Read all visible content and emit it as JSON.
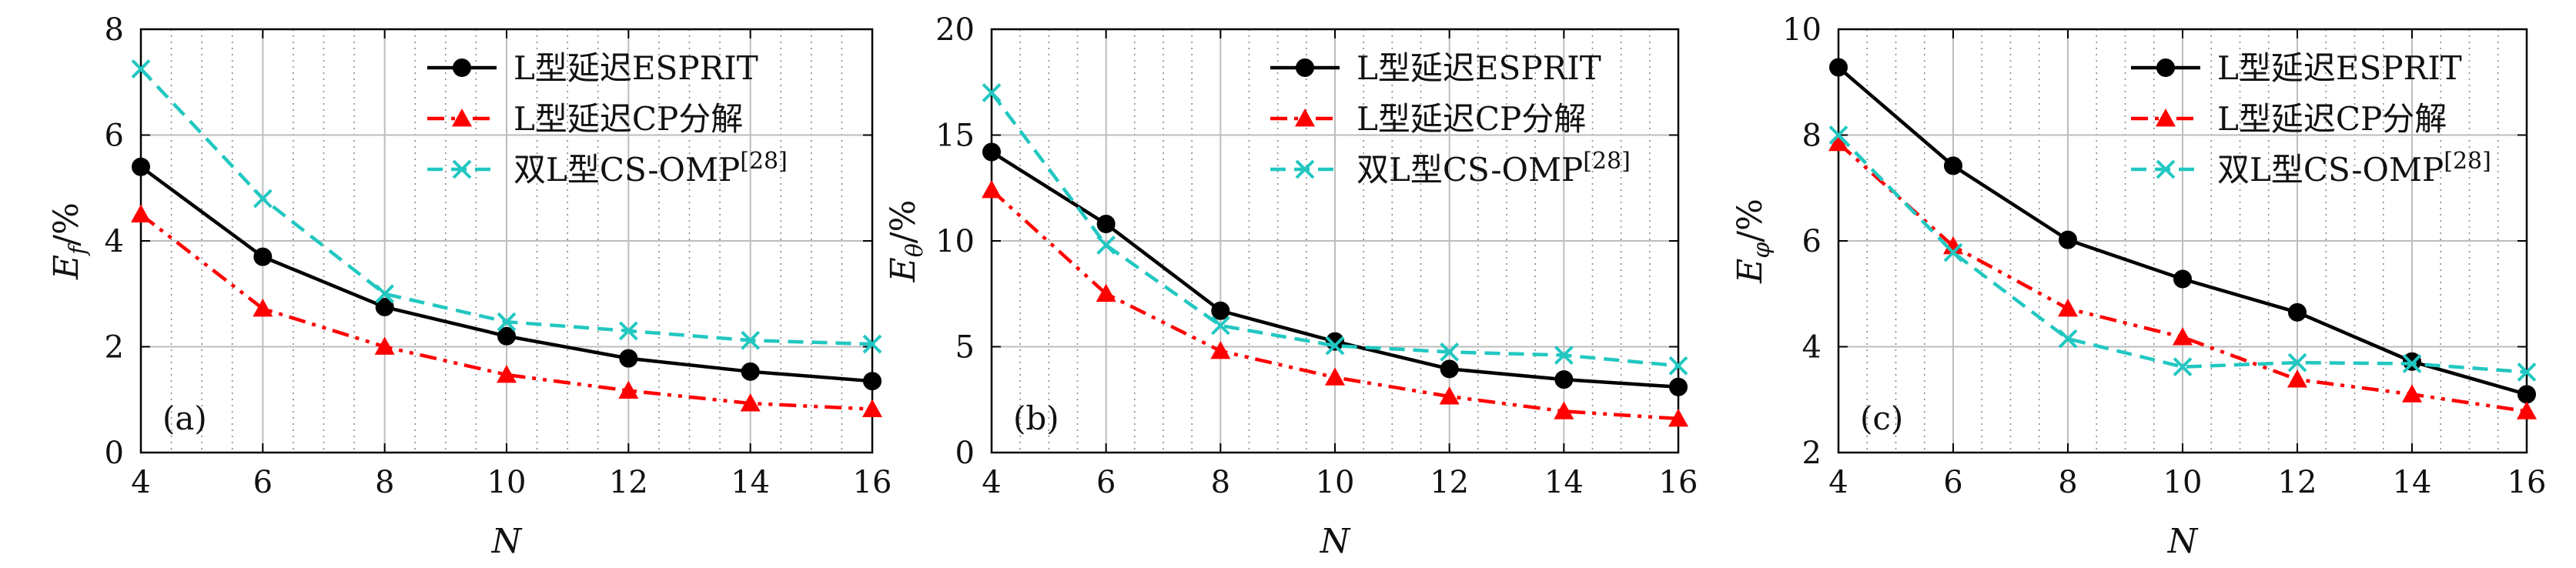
{
  "legend": {
    "esprit": "L型延迟ESPRIT",
    "cp": "L型延迟CP分解",
    "omp": "双L型CS-OMP",
    "omp_ref": "[28]"
  },
  "colors": {
    "esprit": "#000000",
    "cp": "#ff0000",
    "omp": "#22c7c1"
  },
  "chart_data": [
    {
      "type": "line",
      "panel_label": "(a)",
      "xlabel": "N",
      "ylabel": "E_f/%",
      "ylabel_main": "E",
      "ylabel_sub": "f",
      "ylabel_unit": "/%",
      "xlim": [
        4,
        16
      ],
      "ylim": [
        0,
        8
      ],
      "xticks": [
        4,
        6,
        8,
        10,
        12,
        14,
        16
      ],
      "yticks": [
        0,
        2,
        4,
        6,
        8
      ],
      "grid": true,
      "legend_position": "top-right",
      "x": [
        4,
        6,
        8,
        10,
        12,
        14,
        16
      ],
      "series": [
        {
          "name": "L型延迟ESPRIT",
          "values": [
            5.4,
            3.7,
            2.75,
            2.2,
            1.78,
            1.53,
            1.35
          ]
        },
        {
          "name": "L型延迟CP分解",
          "values": [
            4.5,
            2.72,
            2.0,
            1.47,
            1.17,
            0.93,
            0.82
          ]
        },
        {
          "name": "双L型CS-OMP[28]",
          "values": [
            7.25,
            4.8,
            3.0,
            2.47,
            2.3,
            2.12,
            2.05
          ]
        }
      ]
    },
    {
      "type": "line",
      "panel_label": "(b)",
      "xlabel": "N",
      "ylabel": "E_θ/%",
      "ylabel_main": "E",
      "ylabel_sub": "θ",
      "ylabel_unit": "/%",
      "xlim": [
        4,
        16
      ],
      "ylim": [
        0,
        20
      ],
      "xticks": [
        4,
        6,
        8,
        10,
        12,
        14,
        16
      ],
      "yticks": [
        0,
        5,
        10,
        15,
        20
      ],
      "grid": true,
      "legend_position": "top-right",
      "x": [
        4,
        6,
        8,
        10,
        12,
        14,
        16
      ],
      "series": [
        {
          "name": "L型延迟ESPRIT",
          "values": [
            14.2,
            10.8,
            6.7,
            5.25,
            3.95,
            3.45,
            3.1
          ]
        },
        {
          "name": "L型延迟CP分解",
          "values": [
            12.4,
            7.5,
            4.8,
            3.55,
            2.65,
            1.95,
            1.6
          ]
        },
        {
          "name": "双L型CS-OMP[28]",
          "values": [
            17.0,
            9.8,
            6.0,
            5.05,
            4.75,
            4.6,
            4.1
          ]
        }
      ]
    },
    {
      "type": "line",
      "panel_label": "(c)",
      "xlabel": "N",
      "ylabel": "E_φ/%",
      "ylabel_main": "E",
      "ylabel_sub": "φ",
      "ylabel_unit": "/%",
      "xlim": [
        4,
        16
      ],
      "ylim": [
        2,
        10
      ],
      "xticks": [
        4,
        6,
        8,
        10,
        12,
        14,
        16
      ],
      "yticks": [
        2,
        4,
        6,
        8,
        10
      ],
      "grid": true,
      "legend_position": "top-right",
      "x": [
        4,
        6,
        8,
        10,
        12,
        14,
        16
      ],
      "series": [
        {
          "name": "L型延迟ESPRIT",
          "values": [
            9.28,
            7.42,
            6.02,
            5.28,
            4.65,
            3.72,
            3.1
          ]
        },
        {
          "name": "L型延迟CP分解",
          "values": [
            7.85,
            5.9,
            4.72,
            4.18,
            3.38,
            3.1,
            2.78
          ]
        },
        {
          "name": "双L型CS-OMP[28]",
          "values": [
            8.0,
            5.78,
            4.15,
            3.62,
            3.7,
            3.68,
            3.52
          ]
        }
      ]
    }
  ]
}
